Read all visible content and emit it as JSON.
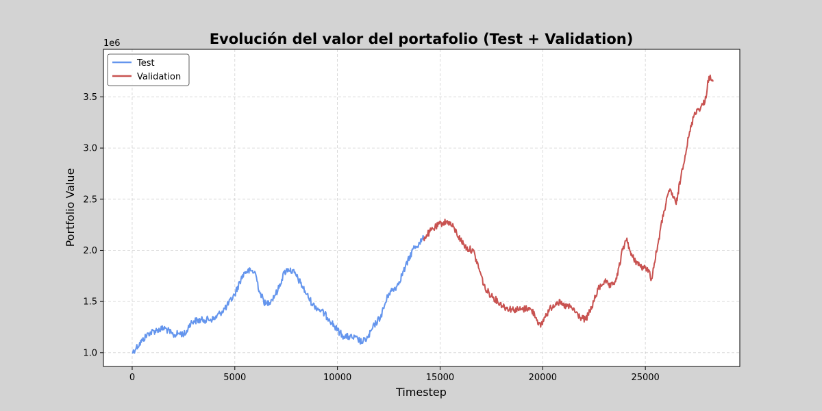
{
  "chart_data": {
    "type": "line",
    "title": "Evolución del valor del portafolio (Test + Validation)",
    "xlabel": "Timestep",
    "ylabel": "Portfolio Value",
    "y_offset_label": "1e6",
    "xlim": [
      -1400,
      29600
    ],
    "ylim": [
      0.865,
      3.965
    ],
    "x_ticks": [
      0,
      5000,
      10000,
      15000,
      20000,
      25000
    ],
    "x_tick_labels": [
      "0",
      "5000",
      "10000",
      "15000",
      "20000",
      "25000"
    ],
    "y_ticks": [
      1.0,
      1.5,
      2.0,
      2.5,
      3.0,
      3.5
    ],
    "y_tick_labels": [
      "1.0",
      "1.5",
      "2.0",
      "2.5",
      "3.0",
      "3.5"
    ],
    "grid": true,
    "legend_position": "top-left",
    "series": [
      {
        "name": "Test",
        "color": "#6495ed",
        "x": [
          0,
          200,
          500,
          800,
          1200,
          1600,
          2000,
          2300,
          2600,
          2800,
          3000,
          3500,
          4000,
          4300,
          4600,
          5000,
          5300,
          5500,
          5800,
          6000,
          6200,
          6500,
          6800,
          7100,
          7400,
          7600,
          7900,
          8200,
          8500,
          8800,
          9200,
          9600,
          10000,
          10300,
          10700,
          11000,
          11200,
          11500,
          11800,
          12100,
          12500,
          12900,
          13300,
          13700,
          14000,
          14200
        ],
        "values": [
          1.0,
          1.05,
          1.12,
          1.19,
          1.22,
          1.24,
          1.17,
          1.19,
          1.18,
          1.28,
          1.31,
          1.32,
          1.33,
          1.39,
          1.45,
          1.57,
          1.72,
          1.79,
          1.8,
          1.78,
          1.6,
          1.47,
          1.52,
          1.61,
          1.78,
          1.82,
          1.78,
          1.68,
          1.57,
          1.47,
          1.41,
          1.33,
          1.22,
          1.16,
          1.15,
          1.13,
          1.1,
          1.15,
          1.27,
          1.35,
          1.58,
          1.65,
          1.83,
          2.02,
          2.07,
          2.12
        ]
      },
      {
        "name": "Validation",
        "color": "#c85250",
        "x": [
          14200,
          14500,
          14800,
          15100,
          15400,
          15700,
          16000,
          16300,
          16600,
          16900,
          17200,
          17500,
          17800,
          18200,
          18600,
          19000,
          19300,
          19600,
          19900,
          20100,
          20400,
          20700,
          21000,
          21400,
          21800,
          22100,
          22400,
          22700,
          23000,
          23300,
          23600,
          23900,
          24100,
          24300,
          24600,
          24900,
          25100,
          25300,
          25600,
          25900,
          26200,
          26500,
          26800,
          27100,
          27400,
          27700,
          27900,
          28100,
          28300
        ],
        "values": [
          2.12,
          2.18,
          2.23,
          2.27,
          2.28,
          2.21,
          2.1,
          2.02,
          2.0,
          1.82,
          1.62,
          1.56,
          1.5,
          1.44,
          1.42,
          1.42,
          1.44,
          1.38,
          1.25,
          1.35,
          1.44,
          1.5,
          1.46,
          1.44,
          1.35,
          1.32,
          1.45,
          1.62,
          1.7,
          1.64,
          1.72,
          2.01,
          2.12,
          1.95,
          1.88,
          1.82,
          1.83,
          1.72,
          2.05,
          2.38,
          2.6,
          2.45,
          2.8,
          3.1,
          3.35,
          3.4,
          3.45,
          3.7,
          3.65
        ]
      }
    ]
  }
}
